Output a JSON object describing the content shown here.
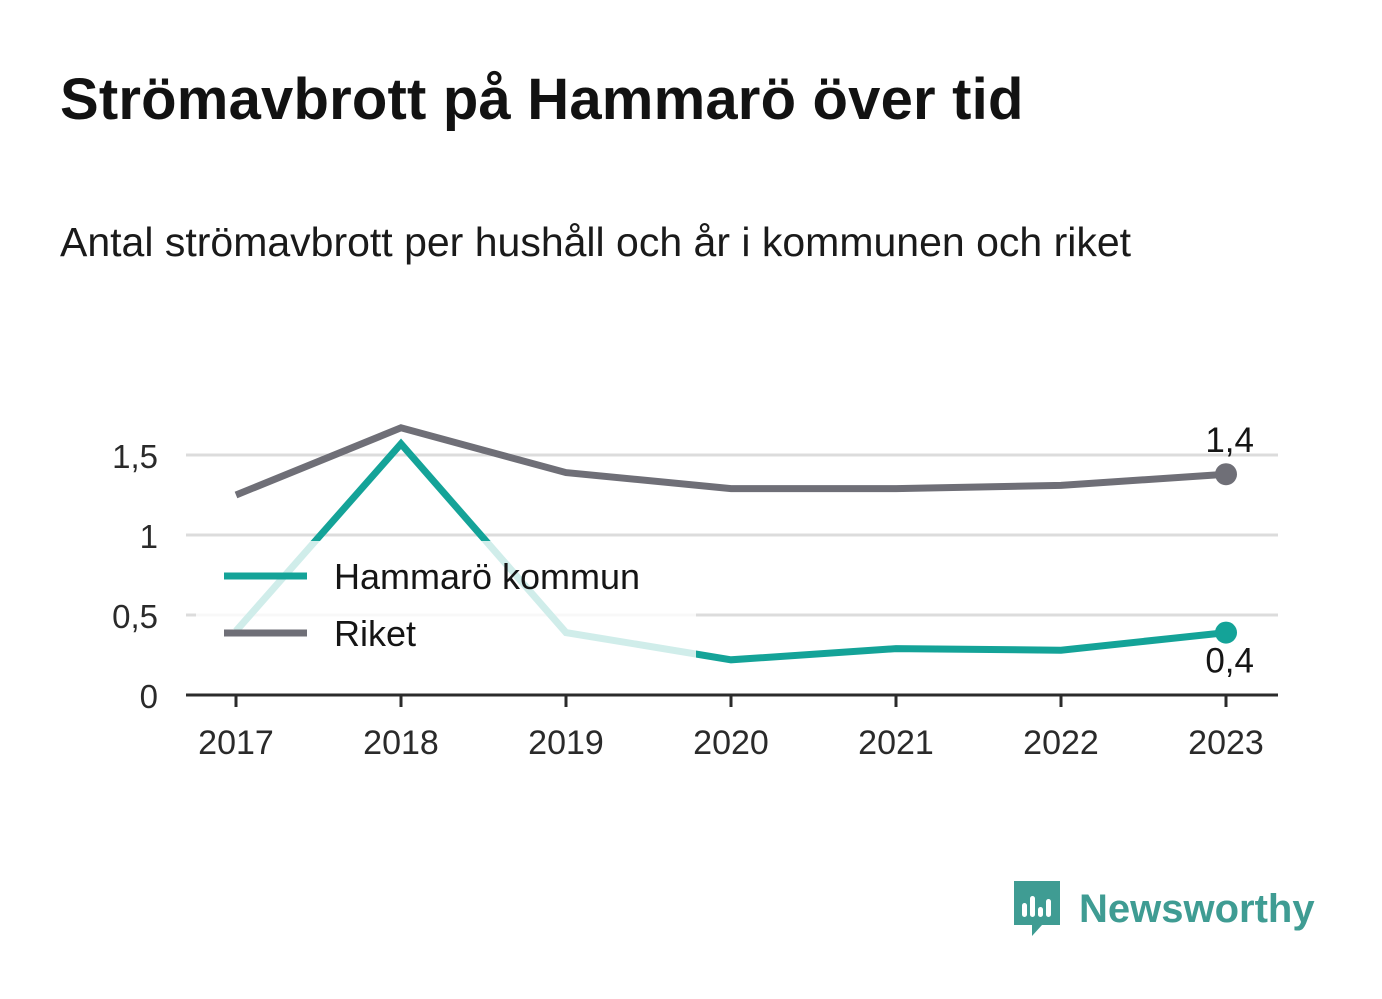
{
  "title": "Strömavbrott på Hammarö över tid",
  "subtitle": "Antal strömavbrott per hushåll och år i kommunen och riket",
  "brand": {
    "name": "Newsworthy",
    "icon": "bar-chart-speech-bubble-icon",
    "color": "#3f9c93"
  },
  "chart_data": {
    "type": "line",
    "x": [
      "2017",
      "2018",
      "2019",
      "2020",
      "2021",
      "2022",
      "2023"
    ],
    "y_ticks": [
      "0",
      "0,5",
      "1",
      "1,5"
    ],
    "ylim": [
      0,
      1.75
    ],
    "grid": true,
    "legend_position": "left",
    "series": [
      {
        "name": "Hammarö kommun",
        "color": "#14a398",
        "values": [
          0.4,
          1.57,
          0.39,
          0.22,
          0.29,
          0.28,
          0.39
        ],
        "end_label": "0,4"
      },
      {
        "name": "Riket",
        "color": "#6f6f77",
        "values": [
          1.25,
          1.67,
          1.39,
          1.29,
          1.29,
          1.31,
          1.38
        ],
        "end_label": "1,4"
      }
    ]
  }
}
